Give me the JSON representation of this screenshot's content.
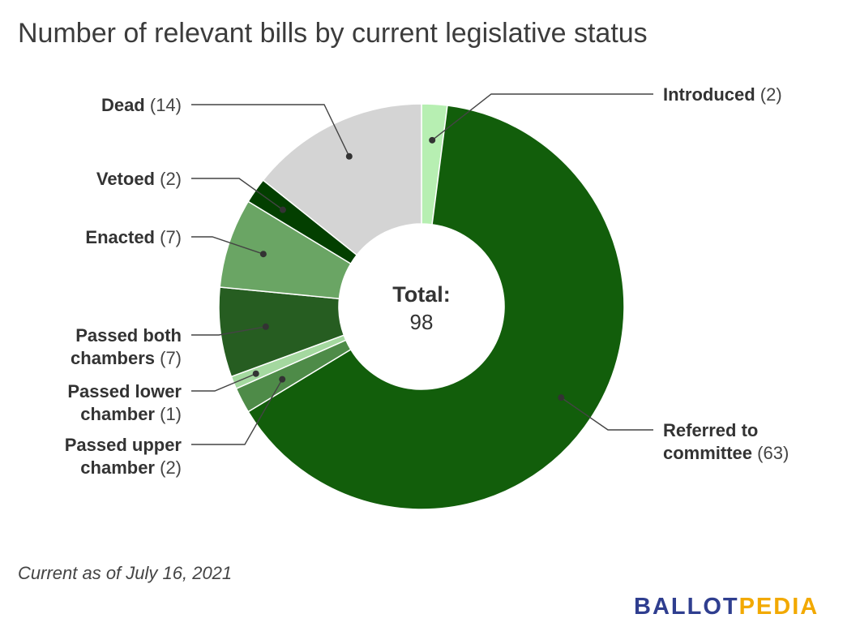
{
  "chart_data": {
    "type": "pie",
    "title": "Number of relevant bills by current legislative status",
    "center_label": {
      "title": "Total:",
      "value": "98"
    },
    "slices": [
      {
        "label": "Introduced",
        "value": 2,
        "count_text": "(2)",
        "color": "#b7efb2"
      },
      {
        "label": "Referred to committee",
        "value": 63,
        "count_text": "(63)",
        "color": "#125e0b"
      },
      {
        "label": "Passed upper chamber",
        "value": 2,
        "count_text": "(2)",
        "color": "#4e8b48"
      },
      {
        "label": "Passed lower chamber",
        "value": 1,
        "count_text": "(1)",
        "color": "#a4d89f"
      },
      {
        "label": "Passed both chambers",
        "value": 7,
        "count_text": "(7)",
        "color": "#265d21"
      },
      {
        "label": "Enacted",
        "value": 7,
        "count_text": "(7)",
        "color": "#6aa564"
      },
      {
        "label": "Vetoed",
        "value": 2,
        "count_text": "(2)",
        "color": "#033f00"
      },
      {
        "label": "Dead",
        "value": 14,
        "count_text": "(14)",
        "color": "#d4d4d4"
      }
    ]
  },
  "footnote": "Current as of July 16, 2021",
  "brand": {
    "part1": "BALLOT",
    "part2": "PEDIA"
  }
}
